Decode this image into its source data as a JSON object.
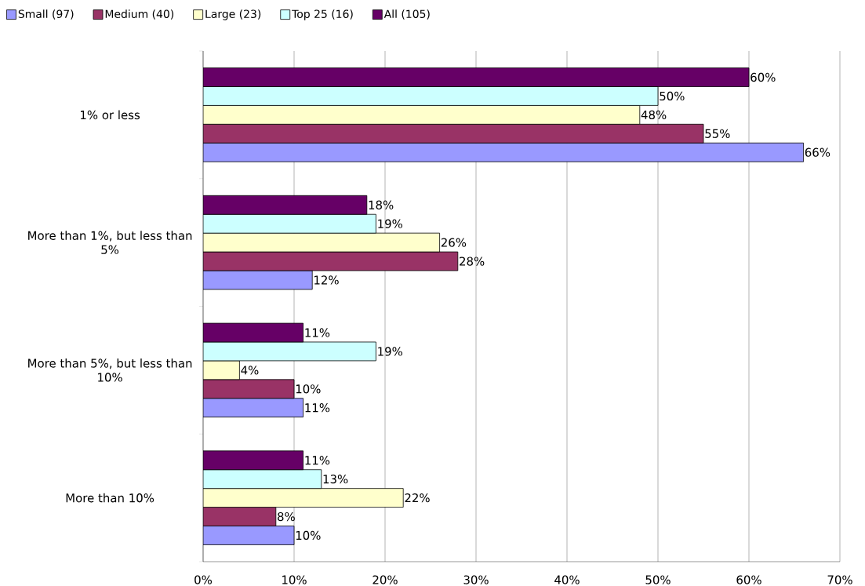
{
  "chart_data": {
    "type": "bar",
    "orientation": "horizontal",
    "categories": [
      "1% or less",
      "More than 1%, but less than 5%",
      "More than 5%, but less than 10%",
      "More than 10%"
    ],
    "series": [
      {
        "name": "Small (97)",
        "color": "#9999ff",
        "values": [
          66,
          12,
          11,
          10
        ],
        "value_labels": [
          "66%",
          "12%",
          "11%",
          "10%"
        ]
      },
      {
        "name": "Medium (40)",
        "color": "#993366",
        "values": [
          55,
          28,
          10,
          8
        ],
        "value_labels": [
          "55%",
          "28%",
          "10%",
          "8%"
        ]
      },
      {
        "name": "Large (23)",
        "color": "#ffffcc",
        "values": [
          48,
          26,
          4,
          22
        ],
        "value_labels": [
          "48%",
          "26%",
          "4%",
          "22%"
        ]
      },
      {
        "name": "Top 25 (16)",
        "color": "#ccffff",
        "values": [
          50,
          19,
          19,
          13
        ],
        "value_labels": [
          "50%",
          "19%",
          "19%",
          "13%"
        ]
      },
      {
        "name": "All (105)",
        "color": "#660066",
        "values": [
          60,
          18,
          11,
          11
        ],
        "value_labels": [
          "60%",
          "18%",
          "11%",
          "11%"
        ]
      }
    ],
    "xlim": [
      0,
      70
    ],
    "xticks": [
      {
        "value": 0,
        "label": "0%"
      },
      {
        "value": 10,
        "label": "10%"
      },
      {
        "value": 20,
        "label": "20%"
      },
      {
        "value": 30,
        "label": "30%"
      },
      {
        "value": 40,
        "label": "40%"
      },
      {
        "value": 50,
        "label": "50%"
      },
      {
        "value": 60,
        "label": "60%"
      },
      {
        "value": 70,
        "label": "70%"
      }
    ],
    "grid": "x",
    "legend": "top"
  }
}
